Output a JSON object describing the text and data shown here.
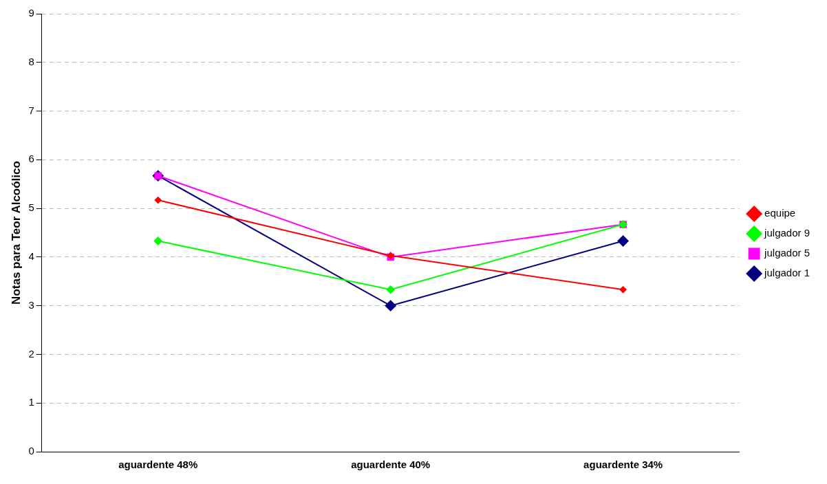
{
  "chart_data": {
    "type": "line",
    "ylabel": "Notas para Teor Alcoólico",
    "categories": [
      "aguardente 48%",
      "aguardente 40%",
      "aguardente 34%"
    ],
    "series": [
      {
        "name": "julgador 1",
        "color": "#000080",
        "marker": "diamond",
        "values": [
          5.67,
          3.0,
          4.33
        ]
      },
      {
        "name": "julgador 5",
        "color": "#ff00ff",
        "marker": "square",
        "values": [
          5.67,
          4.0,
          4.67
        ]
      },
      {
        "name": "julgador 9",
        "color": "#00ff00",
        "marker": "diamond",
        "values": [
          4.33,
          3.33,
          4.67
        ]
      },
      {
        "name": "equipe",
        "color": "#ff0000",
        "marker": "diamond",
        "values": [
          5.17,
          4.03,
          3.33
        ]
      }
    ],
    "ylim": [
      0,
      9
    ],
    "yticks": [
      0,
      1,
      2,
      3,
      4,
      5,
      6,
      7,
      8,
      9
    ],
    "grid": "y",
    "legend": "right",
    "line_style": "solid"
  }
}
